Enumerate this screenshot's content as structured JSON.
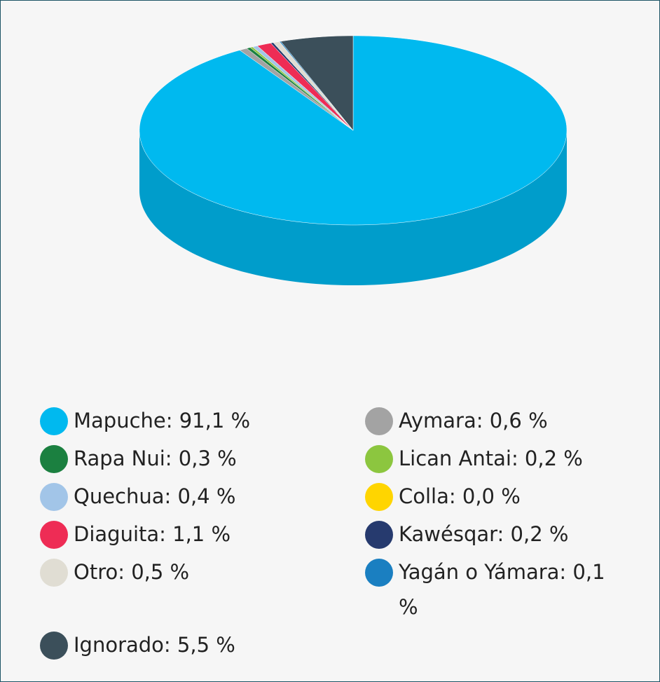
{
  "chart_data": {
    "type": "pie3d",
    "categories": [
      "Mapuche: 91,1 %",
      "Aymara: 0,6 %",
      "Rapa Nui: 0,3 %",
      "Lican Antai: 0,2 %",
      "Quechua: 0,4 %",
      "Colla: 0,0 %",
      "Diaguita: 1,1 %",
      "Kawésqar: 0,2 %",
      "Otro: 0,5 %",
      "Yagán o Yámara: 0,1 %",
      "Ignorado: 5,5 %"
    ],
    "values": [
      91.1,
      0.6,
      0.3,
      0.2,
      0.4,
      0.0,
      1.1,
      0.2,
      0.5,
      0.1,
      5.5
    ],
    "colors": [
      "#00b9ef",
      "#a3a3a3",
      "#1b8040",
      "#8cc63f",
      "#a2c5e8",
      "#ffd500",
      "#ee2c55",
      "#263a6e",
      "#e0ddd3",
      "#1a7fc1",
      "#3b4f5a"
    ]
  }
}
